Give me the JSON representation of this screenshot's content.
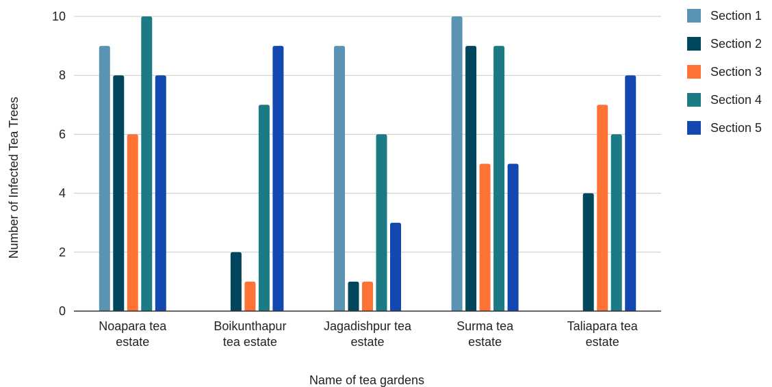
{
  "chart_data": {
    "type": "bar",
    "xlabel": "Name of tea gardens",
    "ylabel": "Number of Infected Tea Trees",
    "ylim": [
      0,
      10
    ],
    "yticks": [
      0,
      2,
      4,
      6,
      8,
      10
    ],
    "grid": true,
    "legend_position": "right",
    "categories": [
      [
        "Noapara tea",
        "estate"
      ],
      [
        "Boikunthapur",
        "tea estate"
      ],
      [
        "Jagadishpur tea",
        "estate"
      ],
      [
        "Surma tea",
        "estate"
      ],
      [
        "Taliapara tea",
        "estate"
      ]
    ],
    "series": [
      {
        "name": "Section 1",
        "color": "#5b93b3",
        "values": [
          9,
          0,
          9,
          10,
          0
        ]
      },
      {
        "name": "Section 2",
        "color": "#02465e",
        "values": [
          8,
          2,
          1,
          9,
          4
        ]
      },
      {
        "name": "Section 3",
        "color": "#ff7236",
        "values": [
          6,
          1,
          1,
          5,
          7
        ]
      },
      {
        "name": "Section 4",
        "color": "#1c7a84",
        "values": [
          10,
          7,
          6,
          9,
          6
        ]
      },
      {
        "name": "Section 5",
        "color": "#1248b0",
        "values": [
          8,
          9,
          3,
          5,
          8
        ]
      }
    ]
  }
}
